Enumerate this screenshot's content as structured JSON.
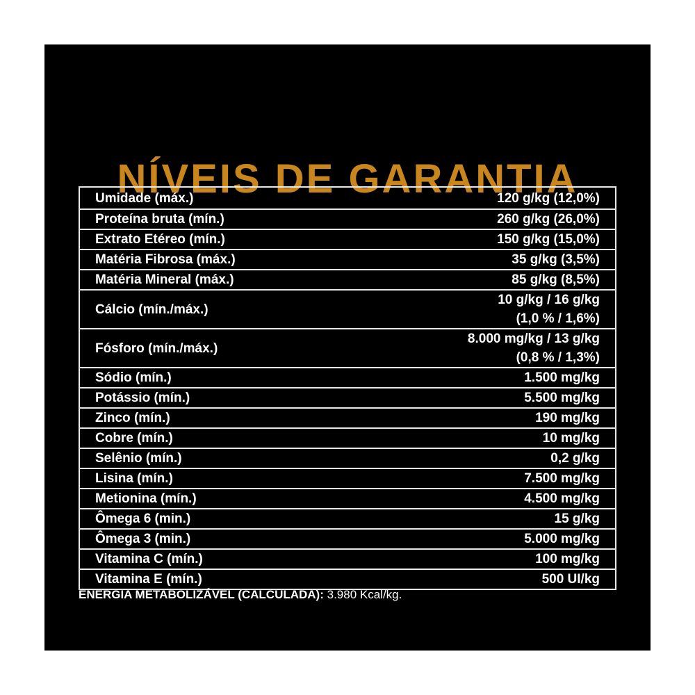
{
  "title": "NÍVEIS DE GARANTIA",
  "rows": [
    {
      "label": "Umidade (máx.)",
      "value": "120 g/kg (12,0%)"
    },
    {
      "label": "Proteína bruta (mín.)",
      "value": "260 g/kg (26,0%)"
    },
    {
      "label": "Extrato Etéreo (mín.)",
      "value": "150 g/kg (15,0%)"
    },
    {
      "label": "Matéria Fibrosa (máx.)",
      "value": "35 g/kg (3,5%)"
    },
    {
      "label": "Matéria Mineral (máx.)",
      "value": "85 g/kg (8,5%)"
    },
    {
      "label": "Cálcio (mín./máx.)",
      "value": "10 g/kg / 16 g/kg",
      "value2": "(1,0 % / 1,6%)"
    },
    {
      "label": "Fósforo (mín./máx.)",
      "value": "8.000 mg/kg / 13 g/kg",
      "value2": "(0,8 % / 1,3%)"
    },
    {
      "label": "Sódio (mín.)",
      "value": "1.500 mg/kg"
    },
    {
      "label": "Potássio (mín.)",
      "value": "5.500 mg/kg"
    },
    {
      "label": "Zinco (mín.)",
      "value": "190 mg/kg"
    },
    {
      "label": "Cobre (mín.)",
      "value": "10 mg/kg"
    },
    {
      "label": "Selênio (mín.)",
      "value": "0,2 g/kg"
    },
    {
      "label": "Lisina (mín.)",
      "value": "7.500 mg/kg"
    },
    {
      "label": "Metionina (mín.)",
      "value": "4.500 mg/kg"
    },
    {
      "label": "Ômega 6 (min.)",
      "value": "15 g/kg"
    },
    {
      "label": "Ômega 3 (min.)",
      "value": "5.000 mg/kg"
    },
    {
      "label": "Vitamina C (mín.)",
      "value": "100 mg/kg"
    },
    {
      "label": "Vitamina E (mín.)",
      "value": "500 UI/kg"
    }
  ],
  "energy": {
    "label": "ENERGIA METABOLIZÁVEL (CALCULADA):",
    "value": "3.980 Kcal/kg."
  },
  "colors": {
    "background": "#000000",
    "title": "#c8861c",
    "text": "#ffffff"
  }
}
